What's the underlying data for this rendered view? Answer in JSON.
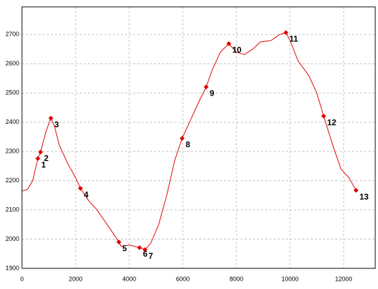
{
  "chart_data": {
    "type": "line",
    "xlim": [
      0,
      13180
    ],
    "ylim": [
      1900,
      2795
    ],
    "xticks": [
      0,
      2000,
      4000,
      6000,
      8000,
      10000,
      12000
    ],
    "yticks": [
      1900,
      2000,
      2100,
      2200,
      2300,
      2400,
      2500,
      2600,
      2700
    ],
    "grid": true,
    "series": [
      {
        "color": "#e00000",
        "x": [
          0,
          200,
          400,
          590,
          692,
          900,
          1077,
          1200,
          1400,
          1700,
          2000,
          2179,
          2500,
          2800,
          3100,
          3400,
          3615,
          3700,
          4000,
          4385,
          4590,
          4800,
          5100,
          5400,
          5700,
          5974,
          6300,
          6600,
          6872,
          7100,
          7400,
          7718,
          8000,
          8300,
          8600,
          8900,
          9300,
          9600,
          9846,
          10000,
          10300,
          10700,
          11000,
          11256,
          11600,
          11900,
          12200,
          12462
        ],
        "values": [
          2165,
          2170,
          2200,
          2276,
          2298,
          2370,
          2414,
          2390,
          2320,
          2260,
          2210,
          2174,
          2130,
          2100,
          2060,
          2020,
          1990,
          1975,
          1980,
          1971,
          1964,
          1985,
          2050,
          2150,
          2270,
          2345,
          2410,
          2470,
          2521,
          2580,
          2640,
          2669,
          2640,
          2632,
          2650,
          2675,
          2680,
          2700,
          2707,
          2680,
          2610,
          2560,
          2500,
          2421,
          2320,
          2240,
          2210,
          2167
        ]
      }
    ],
    "points": {
      "color": "#e00000",
      "labels": [
        "1",
        "2",
        "3",
        "4",
        "5",
        "6",
        "7",
        "8",
        "9",
        "10",
        "11",
        "12",
        "13"
      ],
      "x": [
        590,
        692,
        1077,
        2179,
        3615,
        4385,
        4590,
        5974,
        6872,
        7718,
        9846,
        11256,
        12462
      ],
      "values": [
        2276,
        2298,
        2414,
        2174,
        1990,
        1971,
        1964,
        2345,
        2521,
        2669,
        2707,
        2421,
        2167
      ]
    }
  }
}
